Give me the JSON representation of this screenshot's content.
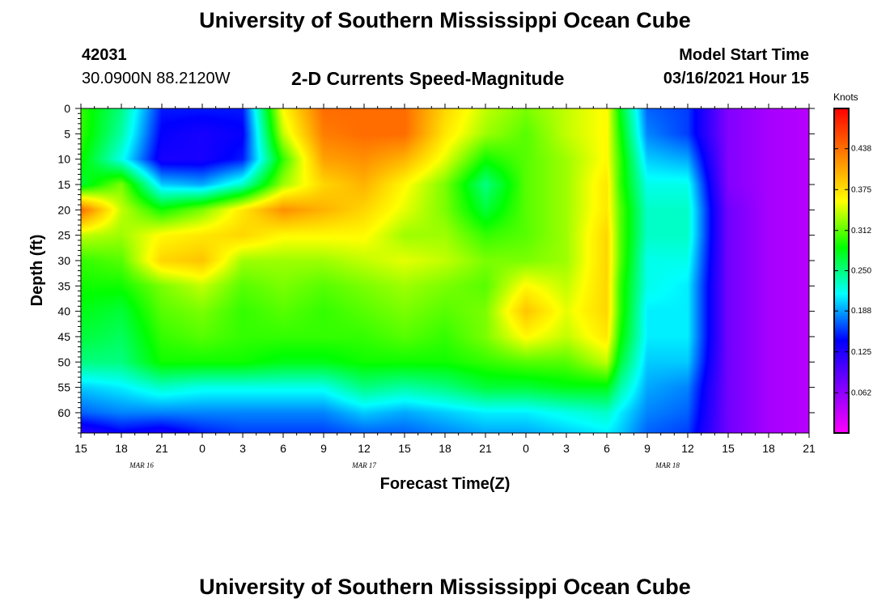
{
  "header": {
    "title": "University of Southern Mississippi Ocean Cube",
    "station_id": "42031",
    "location": "30.0900N 88.2120W",
    "product": "2-D Currents Speed-Magnitude",
    "model_start_label": "Model Start Time",
    "model_start_value": "03/16/2021 Hour 15"
  },
  "footer": {
    "title": "University of Southern Mississippi Ocean Cube"
  },
  "chart_data": {
    "type": "heatmap",
    "title": "2-D Currents Speed-Magnitude",
    "xlabel": "Forecast Time(Z)",
    "ylabel": "Depth (ft)",
    "x_hours": [
      0,
      3,
      6,
      9,
      12,
      15,
      18,
      21,
      24,
      27,
      30,
      33,
      36,
      39,
      42,
      45,
      48,
      51,
      54
    ],
    "x_tick_labels": [
      "15",
      "18",
      "21",
      "0",
      "3",
      "6",
      "9",
      "12",
      "15",
      "18",
      "21",
      "0",
      "3",
      "6",
      "9",
      "12",
      "15",
      "18",
      "21"
    ],
    "date_labels": [
      {
        "text": "MAR 16",
        "hour": 4.5
      },
      {
        "text": "MAR 17",
        "hour": 21
      },
      {
        "text": "MAR 18",
        "hour": 43.5
      }
    ],
    "y_ticks": [
      0,
      5,
      10,
      15,
      20,
      25,
      30,
      35,
      40,
      45,
      50,
      55,
      60
    ],
    "ylim": [
      0,
      64
    ],
    "xlim": [
      0,
      54
    ],
    "colorbar": {
      "label": "Knots",
      "ticks": [
        0.438,
        0.375,
        0.312,
        0.25,
        0.188,
        0.125,
        0.062
      ],
      "tick_labels": [
        "0.438",
        "0.375",
        "0.312",
        "0.250",
        "0.188",
        "0.125",
        "0.062"
      ],
      "range": [
        0,
        0.5
      ],
      "colors": [
        "#ff00ff",
        "#8000ff",
        "#0000ff",
        "#00ffff",
        "#00ff00",
        "#ffff00",
        "#ff8000",
        "#ff0000"
      ]
    },
    "grid_depths": [
      0,
      5,
      10,
      15,
      20,
      25,
      30,
      35,
      40,
      45,
      50,
      55,
      60,
      64
    ],
    "grid_hours": [
      0,
      3,
      6,
      9,
      12,
      15,
      18,
      21,
      24,
      27,
      30,
      33,
      36,
      39,
      40,
      42,
      45,
      48,
      51,
      54
    ],
    "speed_knots": [
      [
        0.3,
        0.25,
        0.15,
        0.15,
        0.15,
        0.36,
        0.44,
        0.44,
        0.44,
        0.38,
        0.34,
        0.32,
        0.34,
        0.36,
        0.28,
        0.17,
        0.16,
        0.07,
        0.05,
        0.04
      ],
      [
        0.3,
        0.24,
        0.14,
        0.13,
        0.14,
        0.34,
        0.43,
        0.44,
        0.44,
        0.37,
        0.33,
        0.31,
        0.34,
        0.36,
        0.29,
        0.18,
        0.16,
        0.07,
        0.05,
        0.04
      ],
      [
        0.29,
        0.22,
        0.13,
        0.13,
        0.15,
        0.3,
        0.41,
        0.42,
        0.4,
        0.35,
        0.29,
        0.31,
        0.33,
        0.36,
        0.3,
        0.2,
        0.19,
        0.07,
        0.05,
        0.04
      ],
      [
        0.27,
        0.32,
        0.2,
        0.19,
        0.23,
        0.33,
        0.38,
        0.4,
        0.36,
        0.32,
        0.25,
        0.31,
        0.33,
        0.37,
        0.3,
        0.22,
        0.22,
        0.07,
        0.05,
        0.04
      ],
      [
        0.44,
        0.34,
        0.29,
        0.32,
        0.37,
        0.42,
        0.4,
        0.38,
        0.35,
        0.32,
        0.27,
        0.31,
        0.33,
        0.37,
        0.31,
        0.23,
        0.23,
        0.08,
        0.05,
        0.04
      ],
      [
        0.34,
        0.33,
        0.36,
        0.37,
        0.38,
        0.36,
        0.36,
        0.36,
        0.33,
        0.33,
        0.3,
        0.31,
        0.33,
        0.38,
        0.31,
        0.23,
        0.23,
        0.08,
        0.05,
        0.04
      ],
      [
        0.3,
        0.31,
        0.38,
        0.39,
        0.33,
        0.33,
        0.33,
        0.34,
        0.35,
        0.34,
        0.32,
        0.32,
        0.33,
        0.38,
        0.31,
        0.22,
        0.22,
        0.08,
        0.05,
        0.04
      ],
      [
        0.29,
        0.29,
        0.32,
        0.34,
        0.31,
        0.32,
        0.31,
        0.32,
        0.33,
        0.32,
        0.31,
        0.36,
        0.34,
        0.38,
        0.3,
        0.22,
        0.21,
        0.08,
        0.05,
        0.04
      ],
      [
        0.28,
        0.27,
        0.31,
        0.32,
        0.3,
        0.31,
        0.3,
        0.31,
        0.32,
        0.31,
        0.32,
        0.39,
        0.35,
        0.38,
        0.3,
        0.21,
        0.21,
        0.08,
        0.05,
        0.04
      ],
      [
        0.27,
        0.26,
        0.3,
        0.31,
        0.3,
        0.3,
        0.3,
        0.3,
        0.31,
        0.3,
        0.32,
        0.36,
        0.34,
        0.37,
        0.29,
        0.21,
        0.21,
        0.08,
        0.05,
        0.04
      ],
      [
        0.25,
        0.25,
        0.29,
        0.29,
        0.29,
        0.28,
        0.28,
        0.29,
        0.29,
        0.29,
        0.3,
        0.31,
        0.31,
        0.34,
        0.27,
        0.2,
        0.2,
        0.08,
        0.05,
        0.04
      ],
      [
        0.2,
        0.21,
        0.23,
        0.22,
        0.22,
        0.22,
        0.22,
        0.25,
        0.24,
        0.25,
        0.27,
        0.27,
        0.28,
        0.28,
        0.24,
        0.19,
        0.18,
        0.08,
        0.05,
        0.04
      ],
      [
        0.17,
        0.18,
        0.18,
        0.18,
        0.18,
        0.18,
        0.18,
        0.2,
        0.19,
        0.2,
        0.21,
        0.21,
        0.22,
        0.23,
        0.21,
        0.18,
        0.17,
        0.08,
        0.05,
        0.04
      ],
      [
        0.12,
        0.14,
        0.13,
        0.15,
        0.16,
        0.16,
        0.16,
        0.17,
        0.17,
        0.18,
        0.19,
        0.19,
        0.2,
        0.21,
        0.2,
        0.17,
        0.16,
        0.08,
        0.05,
        0.04
      ]
    ]
  }
}
